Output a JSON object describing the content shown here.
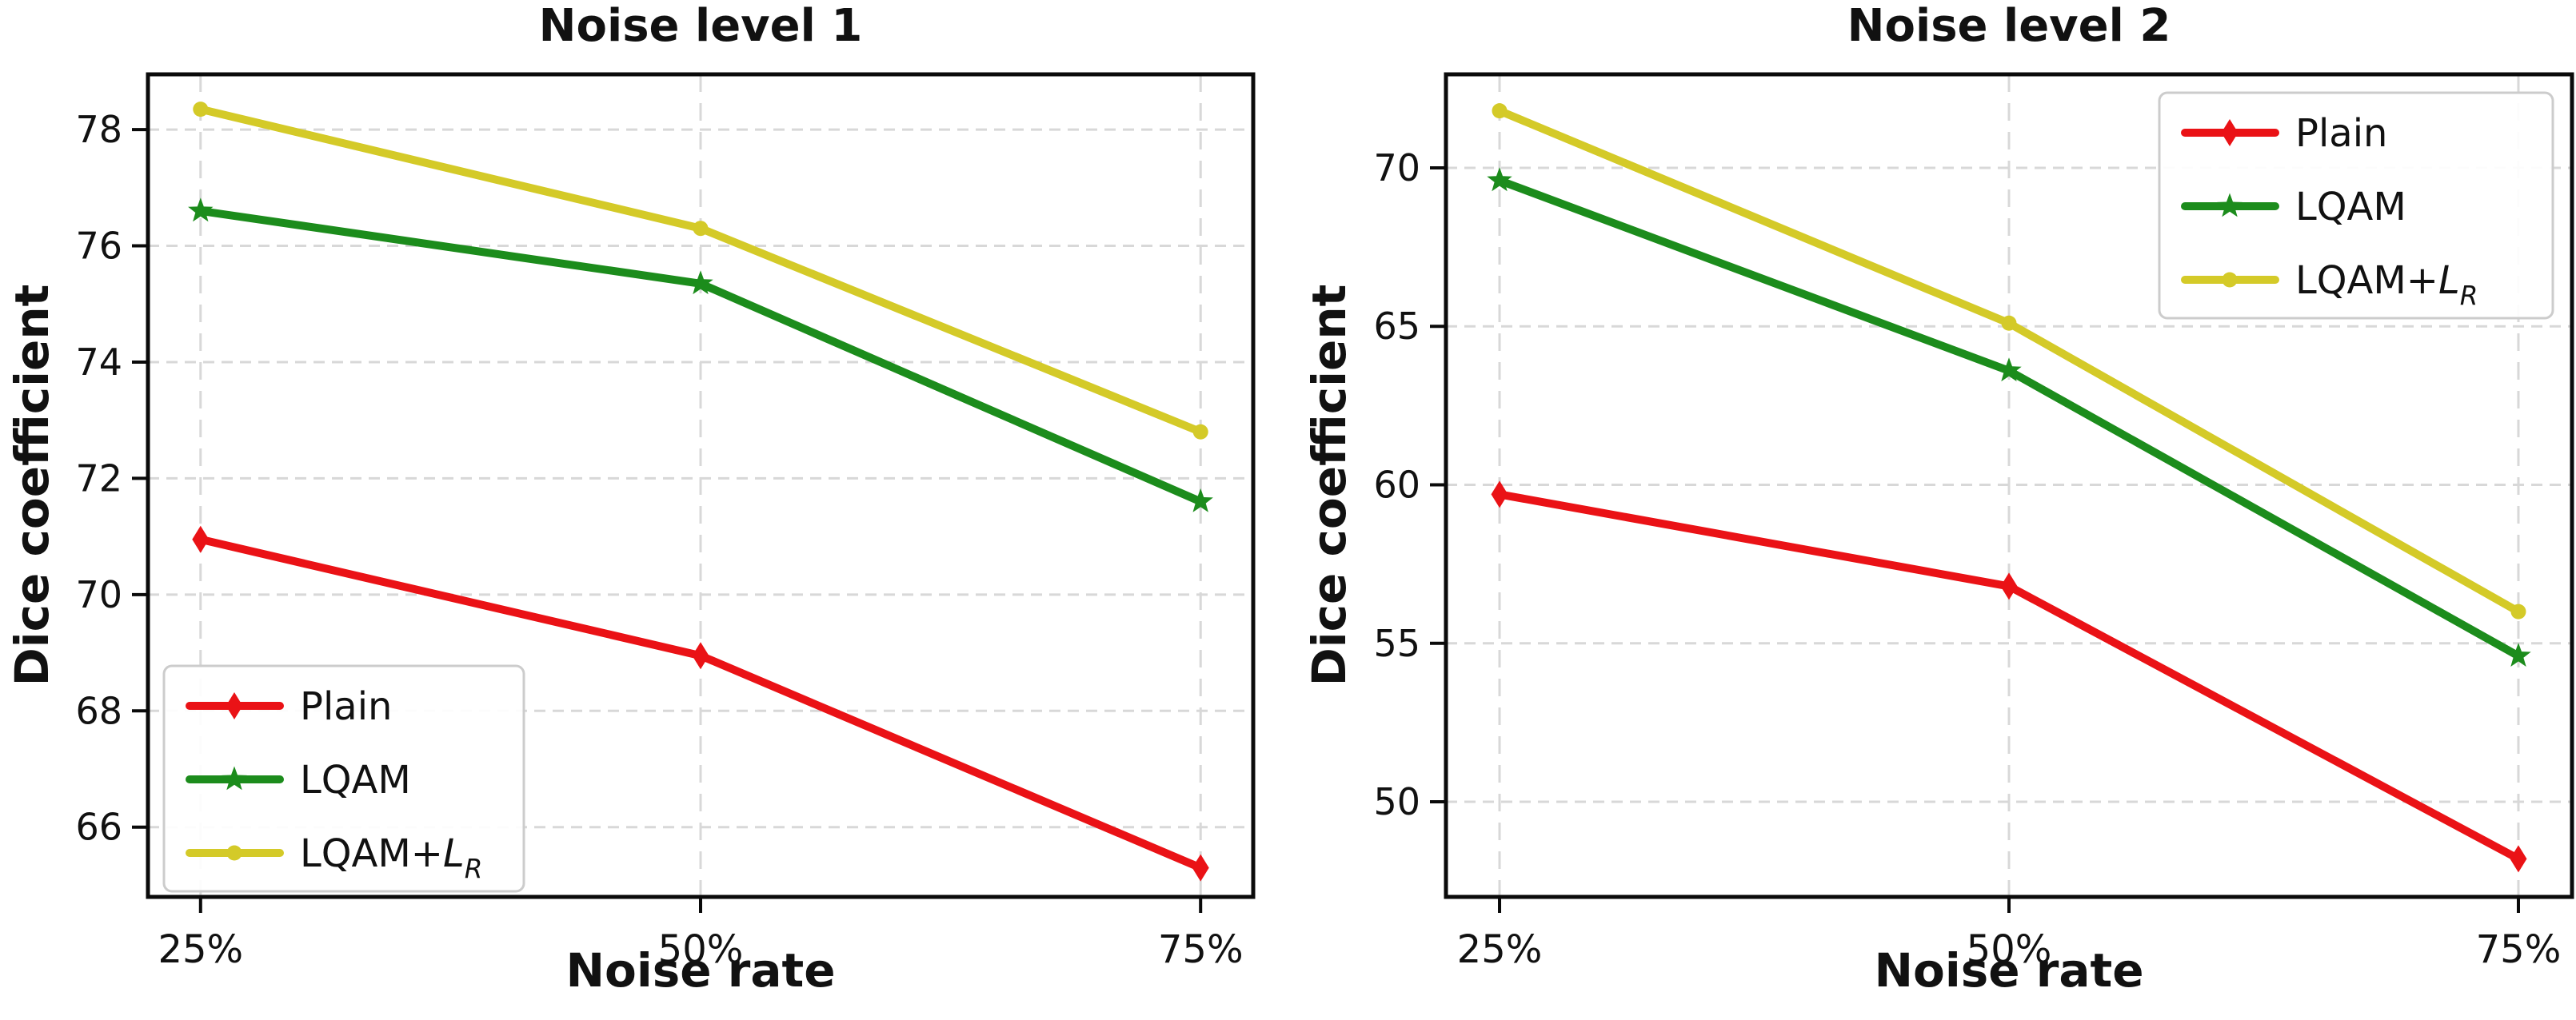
{
  "figure": {
    "background": "#ffffff"
  },
  "chart_data": [
    {
      "type": "line",
      "title": "Noise level 1",
      "xlabel": "Noise rate",
      "ylabel": "Dice coefficient",
      "categories": [
        "25%",
        "50%",
        "75%"
      ],
      "yticks": [
        66,
        68,
        70,
        72,
        74,
        76,
        78
      ],
      "ylim": [
        64.8,
        78.95
      ],
      "grid": true,
      "legend_pos": "lower-left",
      "series": [
        {
          "name": "Plain",
          "color": "#ea1216",
          "marker": "diamond",
          "values": [
            70.95,
            68.95,
            65.3
          ]
        },
        {
          "name": "LQAM",
          "color": "#1c8c1c",
          "marker": "star",
          "values": [
            76.6,
            75.35,
            71.6
          ]
        },
        {
          "name": "LQAM+LR",
          "name_parts": {
            "text": "LQAM+",
            "italic": "L",
            "sub": "R"
          },
          "color": "#d4ca28",
          "marker": "circle",
          "values": [
            78.35,
            76.3,
            72.8
          ]
        }
      ]
    },
    {
      "type": "line",
      "title": "Noise level 2",
      "xlabel": "Noise rate",
      "ylabel": "Dice coefficient",
      "categories": [
        "25%",
        "50%",
        "75%"
      ],
      "yticks": [
        50,
        55,
        60,
        65,
        70
      ],
      "ylim": [
        47.0,
        72.95
      ],
      "grid": true,
      "legend_pos": "upper-right",
      "series": [
        {
          "name": "Plain",
          "color": "#ea1216",
          "marker": "diamond",
          "values": [
            59.7,
            56.8,
            48.2
          ]
        },
        {
          "name": "LQAM",
          "color": "#1c8c1c",
          "marker": "star",
          "values": [
            69.6,
            63.6,
            54.6
          ]
        },
        {
          "name": "LQAM+LR",
          "name_parts": {
            "text": "LQAM+",
            "italic": "L",
            "sub": "R"
          },
          "color": "#d4ca28",
          "marker": "circle",
          "values": [
            71.8,
            65.1,
            56.0
          ]
        }
      ]
    }
  ]
}
